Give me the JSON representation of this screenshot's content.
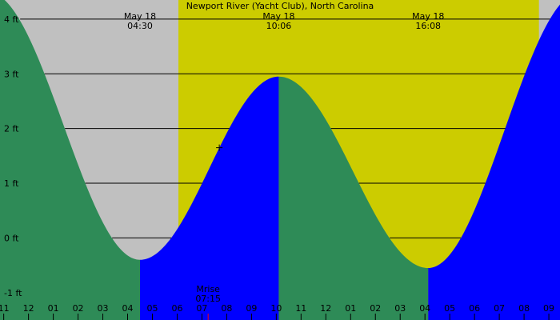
{
  "chart_data": {
    "type": "area",
    "title": "Newport River (Yacht Club), North Carolina",
    "xlabel": "",
    "ylabel": "",
    "y_unit": "ft",
    "ylim": [
      -1.5,
      4.35
    ],
    "y_ticks": [
      {
        "value": -1,
        "label": "-1 ft"
      },
      {
        "value": 0,
        "label": "0 ft"
      },
      {
        "value": 1,
        "label": "1 ft"
      },
      {
        "value": 2,
        "label": "2 ft"
      },
      {
        "value": 3,
        "label": "3 ft"
      },
      {
        "value": 4,
        "label": "4 ft"
      }
    ],
    "x_ticks": [
      {
        "hour": 23,
        "label": "11"
      },
      {
        "hour": 24,
        "label": "12"
      },
      {
        "hour": 25,
        "label": "01"
      },
      {
        "hour": 26,
        "label": "02"
      },
      {
        "hour": 27,
        "label": "03"
      },
      {
        "hour": 28,
        "label": "04"
      },
      {
        "hour": 29,
        "label": "05"
      },
      {
        "hour": 30,
        "label": "06"
      },
      {
        "hour": 31,
        "label": "07"
      },
      {
        "hour": 32,
        "label": "08"
      },
      {
        "hour": 33,
        "label": "09"
      },
      {
        "hour": 34,
        "label": "10"
      },
      {
        "hour": 35,
        "label": "11"
      },
      {
        "hour": 36,
        "label": "12"
      },
      {
        "hour": 37,
        "label": "01"
      },
      {
        "hour": 38,
        "label": "02"
      },
      {
        "hour": 39,
        "label": "03"
      },
      {
        "hour": 40,
        "label": "04"
      },
      {
        "hour": 41,
        "label": "05"
      },
      {
        "hour": 42,
        "label": "06"
      },
      {
        "hour": 43,
        "label": "07"
      },
      {
        "hour": 44,
        "label": "08"
      },
      {
        "hour": 45,
        "label": "09"
      }
    ],
    "x_range_hours": [
      22.85,
      45.45
    ],
    "daylight": {
      "start_hour": 30.05,
      "end_hour": 44.6
    },
    "extrema": [
      {
        "hour": 22.35,
        "height": 4.5,
        "type": "high"
      },
      {
        "hour": 28.5,
        "height": -0.4,
        "type": "low",
        "date": "May 18",
        "time": "04:30"
      },
      {
        "hour": 34.1,
        "height": 2.95,
        "type": "high",
        "date": "May 18",
        "time": "10:06"
      },
      {
        "hour": 40.13,
        "height": -0.55,
        "type": "low",
        "date": "May 18",
        "time": "16:08"
      },
      {
        "hour": 46.3,
        "height": 4.5,
        "type": "high"
      }
    ],
    "moonrise": {
      "hour": 31.25,
      "label": "Mrise",
      "time": "07:15"
    },
    "current_marker": {
      "hour": 31.7,
      "height": 1.65
    },
    "colors": {
      "background": "#c0c0c0",
      "daylight": "#cccc00",
      "falling": "#2e8b57",
      "rising": "#0000ff",
      "grid": "#000000",
      "moonrise_tick": "#ff0000"
    }
  }
}
